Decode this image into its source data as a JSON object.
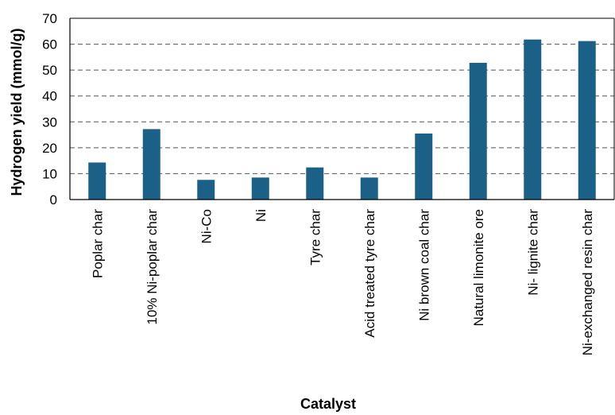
{
  "chart_data": {
    "type": "bar",
    "title": "",
    "xlabel": "Catalyst",
    "ylabel": "Hydrogen yield (mmol/g)",
    "ylim": [
      0,
      70
    ],
    "yticks": [
      0,
      10,
      20,
      30,
      40,
      50,
      60,
      70
    ],
    "grid": "horizontal dashed",
    "legend": "none",
    "bar_color": "#1b6187",
    "categories": [
      "Poplar char",
      "10% Ni-poplar char",
      "Ni-Co",
      "Ni",
      "Tyre char",
      "Acid treated tyre char",
      "Ni brown coal char",
      "Natural limonite ore",
      "Ni- lignite char",
      "Ni-exchanged resin char"
    ],
    "values": [
      14.3,
      27.2,
      7.6,
      8.5,
      12.4,
      8.5,
      25.5,
      52.8,
      61.8,
      61.2
    ]
  }
}
